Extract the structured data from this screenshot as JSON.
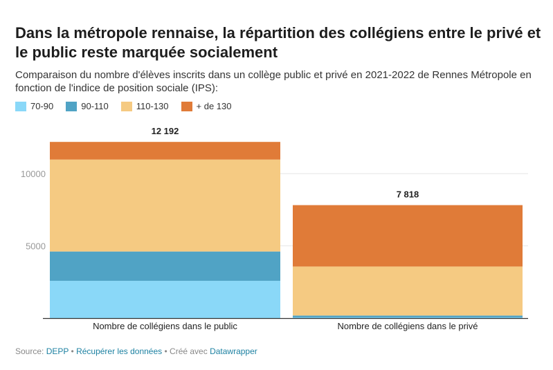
{
  "title": "Dans la métropole rennaise, la répartition des collégiens entre le privé et le public reste marquée socialement",
  "subtitle": "Comparaison du nombre d'élèves inscrits dans un collège public et privé en 2021-2022 de Rennes Métropole en fonction de l'indice de position sociale (IPS):",
  "footer": {
    "source_label": "Source:",
    "source": "DEPP",
    "sep1": "•",
    "download": "Récupérer les données",
    "sep2": "•",
    "created": "Créé avec",
    "tool": "Datawrapper"
  },
  "chart_data": {
    "type": "bar",
    "stacked": true,
    "categories": [
      "Nombre de collégiens dans le public",
      "Nombre de collégiens dans le privé"
    ],
    "series": [
      {
        "name": "70-90",
        "color": "#8ad8f8",
        "values": [
          2580,
          50
        ]
      },
      {
        "name": "90-110",
        "color": "#50a3c5",
        "values": [
          2030,
          130
        ]
      },
      {
        "name": "110-130",
        "color": "#f5ca82",
        "values": [
          6360,
          3390
        ]
      },
      {
        "name": "+ de 130",
        "color": "#e07b38",
        "values": [
          1222,
          4248
        ]
      }
    ],
    "totals": [
      "12 192",
      "7 818"
    ],
    "yticks": [
      "5000",
      "10000"
    ],
    "ylim": [
      0,
      12192
    ],
    "grid": true,
    "legend": "top-left"
  }
}
